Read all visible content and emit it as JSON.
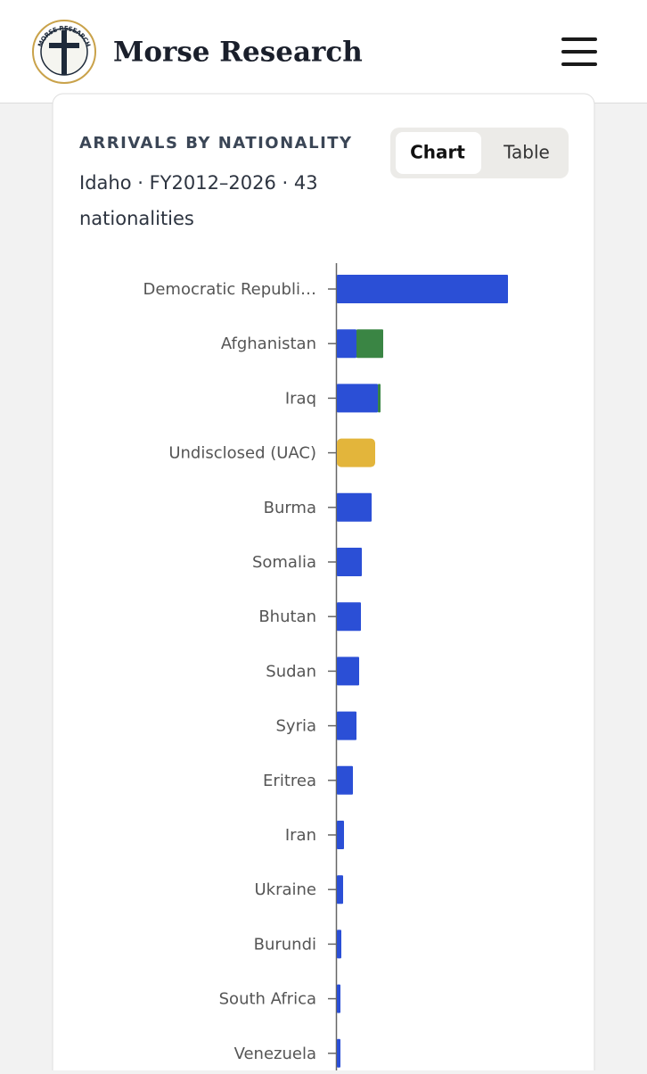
{
  "header": {
    "brand": "Morse Research",
    "logo_text": "MORSE RESEARCH"
  },
  "card": {
    "tabs": [
      "Chart",
      "Table"
    ],
    "active_tab": 0
  },
  "chart_data": {
    "type": "hbar-stacked",
    "title": "ARRIVALS BY NATIONALITY",
    "subtitle": "Idaho · FY2012–2026 · 43 nationalities",
    "categories": [
      "Democratic Republi…",
      "Afghanistan",
      "Iraq",
      "Undisclosed (UAC)",
      "Burma",
      "Somalia",
      "Bhutan",
      "Sudan",
      "Syria",
      "Eritrea",
      "Iran",
      "Ukraine",
      "Burundi",
      "South Africa",
      "Venezuela"
    ],
    "series": [
      {
        "color": "#2b4fd6",
        "values": [
          192,
          22,
          46,
          0,
          39,
          28,
          27,
          25,
          22,
          18,
          8,
          7,
          5,
          4,
          4
        ]
      },
      {
        "color": "#3a8544",
        "values": [
          0,
          30,
          3,
          0,
          0,
          0,
          0,
          0,
          0,
          0,
          0,
          0,
          0,
          0,
          0
        ]
      },
      {
        "color": "#e3b53b",
        "values": [
          0,
          0,
          0,
          43,
          0,
          0,
          0,
          0,
          0,
          0,
          0,
          0,
          0,
          0,
          0
        ]
      }
    ]
  }
}
